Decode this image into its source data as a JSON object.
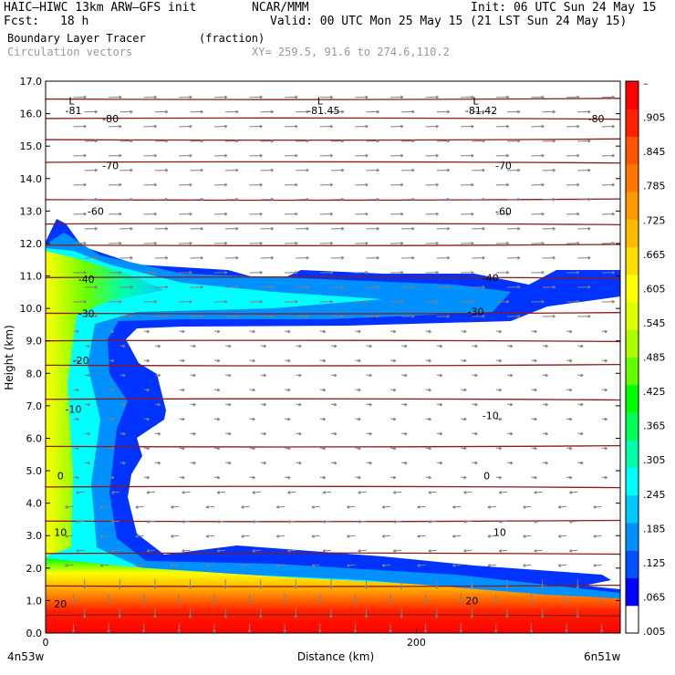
{
  "header": {
    "model": "HAIC–HIWC 13km ARW–GFS init",
    "org": "NCAR/MMM",
    "init": "Init: 06 UTC Sun 24 May 15",
    "fcst_label": "Fcst:",
    "fcst_value": "18 h",
    "valid": "Valid: 00 UTC Mon 25 May 15 (21 LST Sun 24 May 15)",
    "field": "Boundary Layer Tracer",
    "field_units": "(fraction)",
    "vectors": "Circulation vectors",
    "xy": "XY= 259.5, 91.6 to 274.6,110.2"
  },
  "colors": {
    "contour": "#8b1a1a",
    "vector": "#808080",
    "scale": [
      "#ffffff",
      "#0000ff",
      "#0050ff",
      "#0090ff",
      "#00c8ff",
      "#00ffff",
      "#00ffaa",
      "#00ff55",
      "#00ff00",
      "#66ff00",
      "#aaff00",
      "#ddff00",
      "#ffff00",
      "#ffdd00",
      "#ffbb00",
      "#ff9900",
      "#ff7700",
      "#ff5500",
      "#ff2200",
      "#ff0000"
    ]
  },
  "chart_data": {
    "type": "contour",
    "title": "Boundary Layer Tracer (fraction)",
    "xlabel": "Distance (km)",
    "ylabel": "Height (km)",
    "x_start_label": "4n53w",
    "x_end_label": "6n51w",
    "xlim": [
      0,
      310
    ],
    "ylim": [
      0,
      17
    ],
    "x_ticks": [
      {
        "value": 0,
        "label": "0"
      },
      {
        "value": 200,
        "label": "200"
      }
    ],
    "y_ticks": [
      {
        "value": 0,
        "label": "0.0"
      },
      {
        "value": 1,
        "label": "1.0"
      },
      {
        "value": 2,
        "label": "2.0"
      },
      {
        "value": 3,
        "label": "3.0"
      },
      {
        "value": 4,
        "label": "4.0"
      },
      {
        "value": 5,
        "label": "5.0"
      },
      {
        "value": 6,
        "label": "6.0"
      },
      {
        "value": 7,
        "label": "7.0"
      },
      {
        "value": 8,
        "label": "8.0"
      },
      {
        "value": 9,
        "label": "9.0"
      },
      {
        "value": 10,
        "label": "10.0"
      },
      {
        "value": 11,
        "label": "11.0"
      },
      {
        "value": 12,
        "label": "12.0"
      },
      {
        "value": 13,
        "label": "13.0"
      },
      {
        "value": 14,
        "label": "14.0"
      },
      {
        "value": 15,
        "label": "15.0"
      },
      {
        "value": 16,
        "label": "16.0"
      },
      {
        "value": 17,
        "label": "17.0"
      }
    ],
    "colorbar_labels": [
      "–",
      ".905",
      ".845",
      ".785",
      ".725",
      ".665",
      ".605",
      ".545",
      ".485",
      ".425",
      ".365",
      ".305",
      ".245",
      ".185",
      ".125",
      ".065",
      ".005"
    ],
    "temperature_contour_labels": [
      {
        "text": "-81",
        "x": 15,
        "y": 16.1
      },
      {
        "text": "-80",
        "x": 35,
        "y": 15.85
      },
      {
        "text": "-81.45",
        "x": 150,
        "y": 16.1
      },
      {
        "text": "-81.42",
        "x": 235,
        "y": 16.1
      },
      {
        "text": "-80",
        "x": 297,
        "y": 15.85
      },
      {
        "text": "-70",
        "x": 35,
        "y": 14.4
      },
      {
        "text": "-70",
        "x": 247,
        "y": 14.4
      },
      {
        "text": "-60",
        "x": 27,
        "y": 13.0
      },
      {
        "text": "-60",
        "x": 247,
        "y": 13.0
      },
      {
        "text": "-40",
        "x": 22,
        "y": 10.9
      },
      {
        "text": "-40",
        "x": 240,
        "y": 10.95
      },
      {
        "text": "-30",
        "x": 22,
        "y": 9.85
      },
      {
        "text": "-30",
        "x": 232,
        "y": 9.9
      },
      {
        "text": "-20",
        "x": 19,
        "y": 8.4
      },
      {
        "text": "-10",
        "x": 15,
        "y": 6.9
      },
      {
        "text": "-10",
        "x": 240,
        "y": 6.7
      },
      {
        "text": "0",
        "x": 8,
        "y": 4.85
      },
      {
        "text": "0",
        "x": 238,
        "y": 4.85
      },
      {
        "text": "10",
        "x": 8,
        "y": 3.1
      },
      {
        "text": "10",
        "x": 245,
        "y": 3.1
      },
      {
        "text": "20",
        "x": 8,
        "y": 0.9
      },
      {
        "text": "20",
        "x": 230,
        "y": 1.0
      }
    ],
    "low_markers": [
      {
        "text": "L",
        "x": 14,
        "y": 16.4
      },
      {
        "text": "L",
        "x": 148,
        "y": 16.4
      },
      {
        "text": "L",
        "x": 232,
        "y": 16.4
      }
    ],
    "contour_levels_heights_km": [
      0.55,
      1.45,
      2.45,
      3.45,
      4.5,
      5.75,
      7.2,
      8.25,
      9.0,
      9.85,
      10.95,
      11.95,
      12.6,
      13.35,
      14.5,
      15.2,
      15.85,
      16.45
    ]
  }
}
